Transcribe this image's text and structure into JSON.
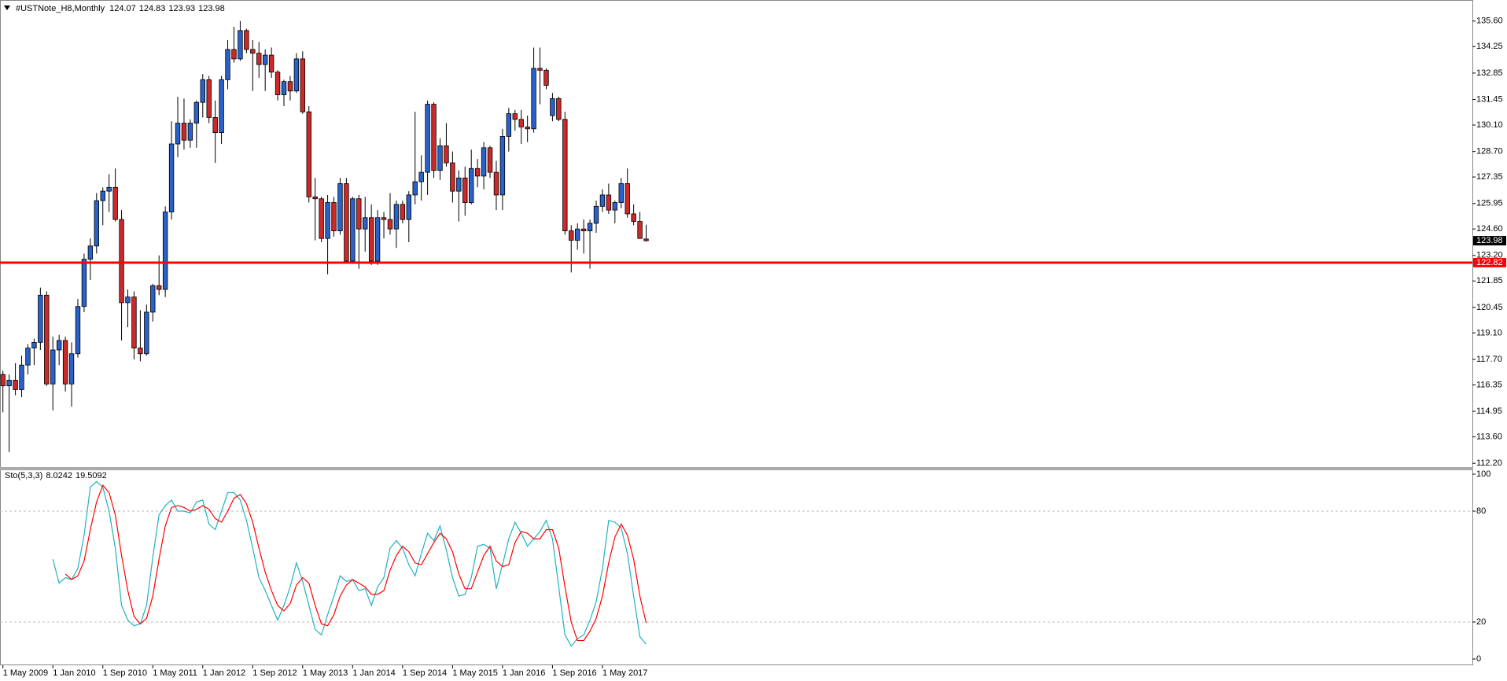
{
  "chart_data": [
    {
      "type": "candlestick",
      "title": "#USTNote_H8,Monthly",
      "categories": [
        "1 May 2009",
        null,
        null,
        null,
        null,
        null,
        null,
        null,
        "1 Jan 2010",
        null,
        null,
        null,
        null,
        null,
        null,
        null,
        "1 Sep 2010",
        null,
        null,
        null,
        null,
        null,
        null,
        null,
        "1 May 2011",
        null,
        null,
        null,
        null,
        null,
        null,
        null,
        "1 Jan 2012",
        null,
        null,
        null,
        null,
        null,
        null,
        null,
        "1 Sep 2012",
        null,
        null,
        null,
        null,
        null,
        null,
        null,
        "1 May 2013",
        null,
        null,
        null,
        null,
        null,
        null,
        null,
        "1 Jan 2014",
        null,
        null,
        null,
        null,
        null,
        null,
        null,
        "1 Sep 2014",
        null,
        null,
        null,
        null,
        null,
        null,
        null,
        "1 May 2015",
        null,
        null,
        null,
        null,
        null,
        null,
        null,
        "1 Jan 2016",
        null,
        null,
        null,
        null,
        null,
        null,
        null,
        "1 Sep 2016",
        null,
        null,
        null,
        null,
        null,
        null,
        null,
        "1 May 2017",
        null,
        null,
        null,
        null,
        null,
        null,
        null
      ],
      "open": [
        116.9,
        116.3,
        116.6,
        116.1,
        117.4,
        118.3,
        118.6,
        121.1,
        116.4,
        118.2,
        118.7,
        116.4,
        118.0,
        120.5,
        123.0,
        123.7,
        126.1,
        126.6,
        126.8,
        125.1,
        120.7,
        121.0,
        118.3,
        118.0,
        120.2,
        121.6,
        121.4,
        125.5,
        129.1,
        130.2,
        129.3,
        130.2,
        131.3,
        132.5,
        130.5,
        129.7,
        132.5,
        134.1,
        133.6,
        135.1,
        134.1,
        133.9,
        133.3,
        133.8,
        132.9,
        131.7,
        132.4,
        131.9,
        133.6,
        130.8,
        126.3,
        126.2,
        124.1,
        126.0,
        124.5,
        127.0,
        122.9,
        126.2,
        124.6,
        125.2,
        122.9,
        125.2,
        125.1,
        124.6,
        125.9,
        125.1,
        126.4,
        127.1,
        127.6,
        131.2,
        127.7,
        129.0,
        128.1,
        126.6,
        127.3,
        126.0,
        127.8,
        127.4,
        128.9,
        127.6,
        126.4,
        129.5,
        130.7,
        130.4,
        130.0,
        129.9,
        133.1,
        133.0,
        130.6,
        131.5,
        130.4,
        124.5,
        124.0,
        124.6,
        124.5,
        124.9,
        125.8,
        126.4,
        125.6,
        126.0,
        127.0,
        125.4,
        125.0,
        124.07
      ],
      "high": [
        117.1,
        116.9,
        117.5,
        117.9,
        118.5,
        118.8,
        121.5,
        121.3,
        118.9,
        119.0,
        118.9,
        118.6,
        120.9,
        123.3,
        124.1,
        126.5,
        126.8,
        127.5,
        127.8,
        125.6,
        121.4,
        121.3,
        120.3,
        120.6,
        121.7,
        123.2,
        125.8,
        130.3,
        131.6,
        131.5,
        130.4,
        131.4,
        132.8,
        132.7,
        131.4,
        132.7,
        134.6,
        135.3,
        135.6,
        135.2,
        134.6,
        134.5,
        134.1,
        134.2,
        133.0,
        132.5,
        132.7,
        133.9,
        134.0,
        131.1,
        127.3,
        126.3,
        126.4,
        126.3,
        127.3,
        127.3,
        126.3,
        126.4,
        126.3,
        125.9,
        125.6,
        125.5,
        126.5,
        126.1,
        126.1,
        126.6,
        130.8,
        128.5,
        131.4,
        131.3,
        129.4,
        130.2,
        128.7,
        127.7,
        127.9,
        128.8,
        128.3,
        129.2,
        129.0,
        128.2,
        129.9,
        131.0,
        130.9,
        130.9,
        130.6,
        134.2,
        134.2,
        133.1,
        131.8,
        131.6,
        130.8,
        124.8,
        124.9,
        125.1,
        125.1,
        126.1,
        126.7,
        127.0,
        126.1,
        127.3,
        127.8,
        125.9,
        125.5,
        124.83
      ],
      "low": [
        114.9,
        112.8,
        115.8,
        115.7,
        116.9,
        117.4,
        118.2,
        116.3,
        115.0,
        117.4,
        116.0,
        115.2,
        117.8,
        120.2,
        121.9,
        123.3,
        124.8,
        125.5,
        125.0,
        118.7,
        119.4,
        117.7,
        117.6,
        117.9,
        119.7,
        121.1,
        121.0,
        125.1,
        128.4,
        128.8,
        128.9,
        128.9,
        130.5,
        130.2,
        128.1,
        129.1,
        132.0,
        133.4,
        133.5,
        133.9,
        131.9,
        132.6,
        131.9,
        132.6,
        131.4,
        131.1,
        131.4,
        131.8,
        130.7,
        126.0,
        124.0,
        123.9,
        122.2,
        124.2,
        124.3,
        122.8,
        122.8,
        122.5,
        123.4,
        122.7,
        122.7,
        124.1,
        124.3,
        123.6,
        124.9,
        123.9,
        125.9,
        126.1,
        126.4,
        127.3,
        127.2,
        127.9,
        126.0,
        125.0,
        125.3,
        125.9,
        126.8,
        126.7,
        127.3,
        125.6,
        125.6,
        128.7,
        129.8,
        129.1,
        129.2,
        129.7,
        131.2,
        132.0,
        130.3,
        130.3,
        124.3,
        122.3,
        123.5,
        123.3,
        122.5,
        124.4,
        125.5,
        125.4,
        124.9,
        125.7,
        125.2,
        124.8,
        124.1,
        123.93
      ],
      "close": [
        116.3,
        116.6,
        116.1,
        117.4,
        118.3,
        118.6,
        121.1,
        116.4,
        118.2,
        118.7,
        116.4,
        118.0,
        120.5,
        123.0,
        123.7,
        126.1,
        126.6,
        126.8,
        125.1,
        120.7,
        121.0,
        118.3,
        118.0,
        120.2,
        121.6,
        121.4,
        125.5,
        129.1,
        130.2,
        129.3,
        130.2,
        131.3,
        132.5,
        130.5,
        129.7,
        132.5,
        134.1,
        133.6,
        135.1,
        134.1,
        133.9,
        133.3,
        133.8,
        132.9,
        131.7,
        132.4,
        131.9,
        133.6,
        130.8,
        126.3,
        126.2,
        124.1,
        126.0,
        124.5,
        127.0,
        122.9,
        126.2,
        124.6,
        125.2,
        122.9,
        125.2,
        125.1,
        124.6,
        125.9,
        125.1,
        126.4,
        127.1,
        127.6,
        131.2,
        127.7,
        129.0,
        128.1,
        126.6,
        127.3,
        126.0,
        127.8,
        127.4,
        128.9,
        127.6,
        126.4,
        129.5,
        130.7,
        130.4,
        130.0,
        129.9,
        133.1,
        133.0,
        132.2,
        131.5,
        130.4,
        124.5,
        124.0,
        124.6,
        124.5,
        124.9,
        125.8,
        126.4,
        125.6,
        126.0,
        127.0,
        125.4,
        125.0,
        124.1,
        123.98
      ],
      "up_color": "#2a62c9",
      "down_color": "#cc2a2a",
      "ylim": [
        112.0,
        136.3
      ],
      "yticks": [
        {
          "value": 135.6,
          "label": "135.60"
        },
        134.25,
        132.85,
        131.45,
        {
          "value": 130.1,
          "label": "130.10"
        },
        {
          "value": 128.7,
          "label": "128.70"
        },
        127.35,
        125.95,
        {
          "value": 124.6,
          "label": "124.60"
        },
        {
          "value": 123.2,
          "label": "123.20"
        },
        121.85,
        120.45,
        {
          "value": 119.1,
          "label": "119.10"
        },
        {
          "value": 117.7,
          "label": "117.70"
        },
        116.35,
        114.95,
        {
          "value": 113.6,
          "label": "113.60"
        },
        {
          "value": 112.2,
          "label": "112.20"
        }
      ],
      "hline": {
        "value": 122.82,
        "color": "#ff0000"
      }
    },
    {
      "type": "line",
      "title": "Sto(5,3,3)",
      "series": [
        {
          "color": "#20b2c0",
          "values": [
            null,
            null,
            null,
            null,
            null,
            null,
            null,
            null,
            54,
            41,
            44,
            43,
            49,
            67,
            93,
            96,
            93,
            80,
            60,
            29,
            21,
            18,
            19,
            29,
            55,
            78,
            83,
            86,
            80,
            80,
            79,
            85,
            86,
            73,
            70,
            80,
            90,
            90,
            86,
            75,
            60,
            44,
            37,
            29,
            21,
            29,
            39,
            52,
            42,
            29,
            16,
            13,
            24,
            34,
            45,
            42,
            43,
            37,
            38,
            29,
            39,
            44,
            60,
            64,
            60,
            51,
            45,
            57,
            68,
            64,
            72,
            59,
            44,
            34,
            35,
            44,
            61,
            62,
            60,
            38,
            51,
            65,
            74,
            68,
            61,
            65,
            69,
            75,
            65,
            39,
            13,
            7,
            11,
            13,
            21,
            31,
            49,
            75,
            74,
            71,
            57,
            34,
            12,
            8.0242
          ]
        },
        {
          "color": "#ff0000",
          "values": [
            null,
            null,
            null,
            null,
            null,
            null,
            null,
            null,
            null,
            null,
            46,
            43,
            45,
            53,
            70,
            85,
            94,
            90,
            78,
            56,
            37,
            23,
            19,
            22,
            34,
            54,
            72,
            82,
            83,
            82,
            80,
            81,
            83,
            81,
            76,
            74,
            80,
            87,
            89,
            84,
            74,
            60,
            47,
            37,
            29,
            26,
            30,
            40,
            44,
            41,
            29,
            19,
            18,
            24,
            34,
            40,
            43,
            41,
            39,
            35,
            35,
            37,
            48,
            56,
            61,
            58,
            52,
            51,
            57,
            63,
            68,
            65,
            58,
            46,
            38,
            38,
            47,
            56,
            61,
            53,
            50,
            51,
            63,
            69,
            68,
            65,
            65,
            70,
            70,
            60,
            39,
            20,
            10,
            10,
            15,
            22,
            34,
            52,
            66,
            73,
            67,
            54,
            34,
            19.5092
          ]
        }
      ],
      "ylim": [
        -3.4,
        101.7
      ],
      "yticks": [
        0,
        20,
        80,
        100
      ],
      "levels": [
        20,
        80
      ]
    }
  ]
}
